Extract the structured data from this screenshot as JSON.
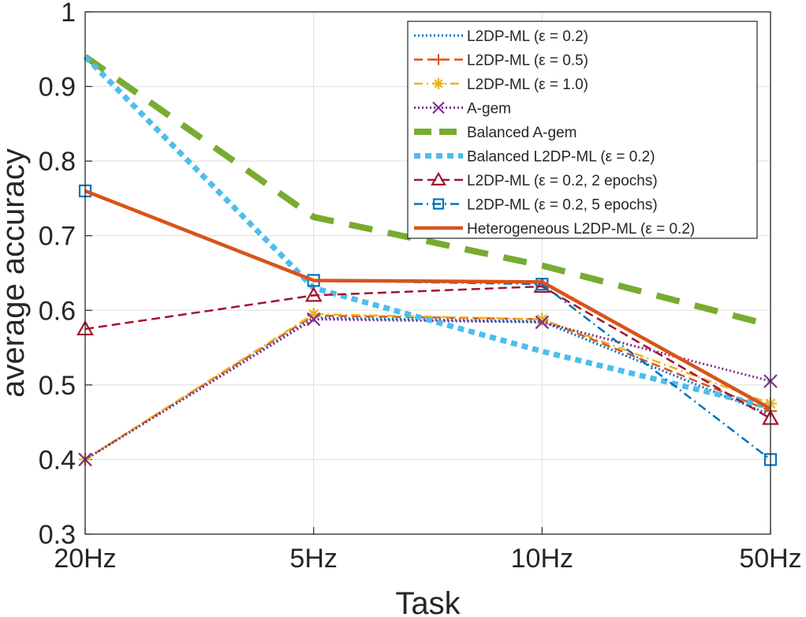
{
  "chart_data": {
    "type": "line",
    "xlabel": "Task",
    "ylabel": "average accuracy",
    "categories": [
      "20Hz",
      "5Hz",
      "10Hz",
      "50Hz"
    ],
    "ylim": [
      0.3,
      1.0
    ],
    "yticks": [
      "0.3",
      "0.4",
      "0.5",
      "0.6",
      "0.7",
      "0.8",
      "0.9",
      "1"
    ],
    "grid": true,
    "legend_position": "top-right",
    "series": [
      {
        "name": "L2DP-ML (ε = 0.2)",
        "values": [
          0.4,
          0.59,
          0.585,
          0.46
        ],
        "color": "#0072BD",
        "dash": "dotted",
        "marker": "none"
      },
      {
        "name": "L2DP-ML (ε = 0.5)",
        "values": [
          0.4,
          0.593,
          0.588,
          0.465
        ],
        "color": "#D95319",
        "dash": "dashed",
        "marker": "plus"
      },
      {
        "name": "L2DP-ML (ε = 1.0)",
        "values": [
          0.4,
          0.595,
          0.588,
          0.475
        ],
        "color": "#EDB120",
        "dash": "dashdot",
        "marker": "asterisk"
      },
      {
        "name": "A-gem",
        "values": [
          0.4,
          0.588,
          0.584,
          0.505
        ],
        "color": "#7E2F8E",
        "dash": "dotted",
        "marker": "x"
      },
      {
        "name": "Balanced A-gem",
        "values": [
          0.94,
          0.725,
          0.66,
          0.58
        ],
        "color": "#77AC30",
        "dash": "longdash",
        "marker": "none"
      },
      {
        "name": "Balanced L2DP-ML (ε = 0.2)",
        "values": [
          0.94,
          0.63,
          0.545,
          0.47
        ],
        "color": "#4DBEEE",
        "dash": "dotted",
        "marker": "none"
      },
      {
        "name": "L2DP-ML (ε = 0.2, 2 epochs)",
        "values": [
          0.575,
          0.62,
          0.632,
          0.455
        ],
        "color": "#A2142F",
        "dash": "dashed",
        "marker": "triangle"
      },
      {
        "name": "L2DP-ML (ε = 0.2, 5 epochs)",
        "values": [
          0.76,
          0.64,
          0.635,
          0.4
        ],
        "color": "#0072BD",
        "dash": "dashdot",
        "marker": "square"
      },
      {
        "name": "Heterogeneous L2DP-ML (ε = 0.2)",
        "values": [
          0.76,
          0.64,
          0.638,
          0.468
        ],
        "color": "#D95319",
        "dash": "solid",
        "marker": "none"
      }
    ]
  }
}
